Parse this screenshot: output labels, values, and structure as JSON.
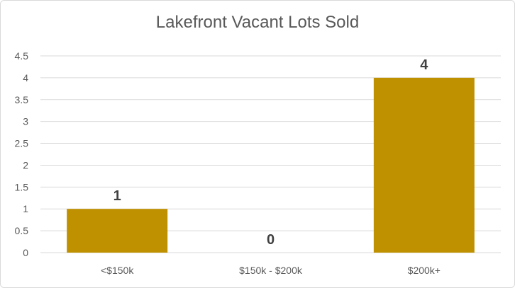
{
  "chart_data": {
    "type": "bar",
    "title": "Lakefront Vacant Lots Sold",
    "xlabel": "",
    "ylabel": "",
    "categories": [
      "<$150k",
      "$150k - $200k",
      "$200k+"
    ],
    "values": [
      1,
      0,
      4
    ],
    "data_labels": [
      "1",
      "0",
      "4"
    ],
    "ylim": [
      0,
      4.5
    ],
    "yticks": [
      "0",
      "0.5",
      "1",
      "1.5",
      "2",
      "2.5",
      "3",
      "3.5",
      "4",
      "4.5"
    ],
    "grid": true,
    "legend": "none",
    "bar_color": "#bf9000",
    "grid_color": "#d9d9d9"
  }
}
